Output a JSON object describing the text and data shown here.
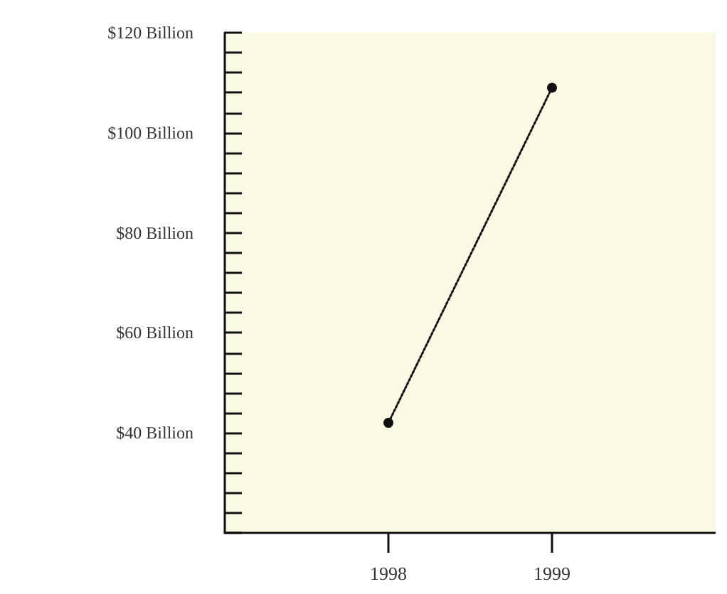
{
  "chart_data": {
    "type": "line",
    "x": [
      1998,
      1999
    ],
    "series": [
      {
        "color": "#111111",
        "values": [
          42,
          109
        ]
      }
    ],
    "xlim": [
      1997,
      2000
    ],
    "xticks": [
      1998,
      1999
    ],
    "ylim": [
      20,
      120
    ],
    "yticks": [
      {
        "value": 20,
        "label": null
      },
      {
        "value": 24,
        "label": null
      },
      {
        "value": 28,
        "label": null
      },
      {
        "value": 32,
        "label": null
      },
      {
        "value": 36,
        "label": null
      },
      {
        "value": 40,
        "label": "$40 Billion"
      },
      {
        "value": 44,
        "label": null
      },
      {
        "value": 48,
        "label": null
      },
      {
        "value": 52,
        "label": null
      },
      {
        "value": 56,
        "label": null
      },
      {
        "value": 60,
        "label": "$60 Billion"
      },
      {
        "value": 64,
        "label": null
      },
      {
        "value": 68,
        "label": null
      },
      {
        "value": 72,
        "label": null
      },
      {
        "value": 76,
        "label": null
      },
      {
        "value": 80,
        "label": "$80 Billion"
      },
      {
        "value": 84,
        "label": null
      },
      {
        "value": 88,
        "label": null
      },
      {
        "value": 92,
        "label": null
      },
      {
        "value": 96,
        "label": null
      },
      {
        "value": 100,
        "label": "$100 Billion"
      },
      {
        "value": 104,
        "label": null
      },
      {
        "value": 108,
        "label": null
      },
      {
        "value": 112,
        "label": null
      },
      {
        "value": 116,
        "label": null
      },
      {
        "value": 120,
        "label": "$120 Billion"
      }
    ],
    "marker": "circle",
    "line_style": "dotted",
    "grid": false
  }
}
